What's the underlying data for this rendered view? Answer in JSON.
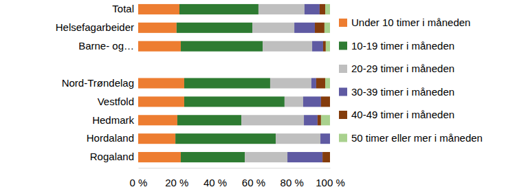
{
  "chart_data": {
    "type": "bar",
    "orientation": "horizontal",
    "stacked": true,
    "legend": "right",
    "grid": false,
    "categories": [
      "Total",
      "Helsefagarbeider",
      "Barne- og…",
      null,
      "Nord-Trøndelag",
      "Vestfold",
      "Hedmark",
      "Hordaland",
      "Rogaland"
    ],
    "series": [
      {
        "name": "Under 10 timer i måneden",
        "color": "#ed7d31",
        "values": [
          21.5,
          20,
          22.2,
          null,
          24,
          24,
          20.4,
          19.4,
          22.2
        ]
      },
      {
        "name": "10-19 timer i måneden",
        "color": "#2e7b32",
        "values": [
          41.2,
          39.5,
          42.7,
          null,
          44.8,
          52.3,
          33.4,
          52.3,
          33.4
        ]
      },
      {
        "name": "20-29 timer i måneden",
        "color": "#bfbfbf",
        "values": [
          24,
          21.9,
          25.8,
          null,
          21.5,
          9.7,
          32.6,
          23.3,
          22.2
        ]
      },
      {
        "name": "30-39 timer i måneden",
        "color": "#5f5aa2",
        "values": [
          7.9,
          10.7,
          5.7,
          null,
          2.5,
          9.3,
          7.1,
          5,
          18.3
        ]
      },
      {
        "name": "40-49 timer i måneden",
        "color": "#843c0c",
        "values": [
          2.9,
          5,
          1.4,
          null,
          4.7,
          4.7,
          1.8,
          0,
          3.9
        ]
      },
      {
        "name": "50 timer eller mer i måneden",
        "color": "#a9d18e",
        "values": [
          2.5,
          2.9,
          2.2,
          null,
          2.5,
          0,
          4.7,
          0,
          0
        ]
      }
    ],
    "xlim": [
      0,
      100
    ],
    "xticks": [
      {
        "value": 0,
        "label": "0 %"
      },
      {
        "value": 20,
        "label": "20 %"
      },
      {
        "value": 40,
        "label": "40 %"
      },
      {
        "value": 60,
        "label": "60 %"
      },
      {
        "value": 80,
        "label": "80 %"
      },
      {
        "value": 100,
        "label": "100 %"
      }
    ]
  }
}
